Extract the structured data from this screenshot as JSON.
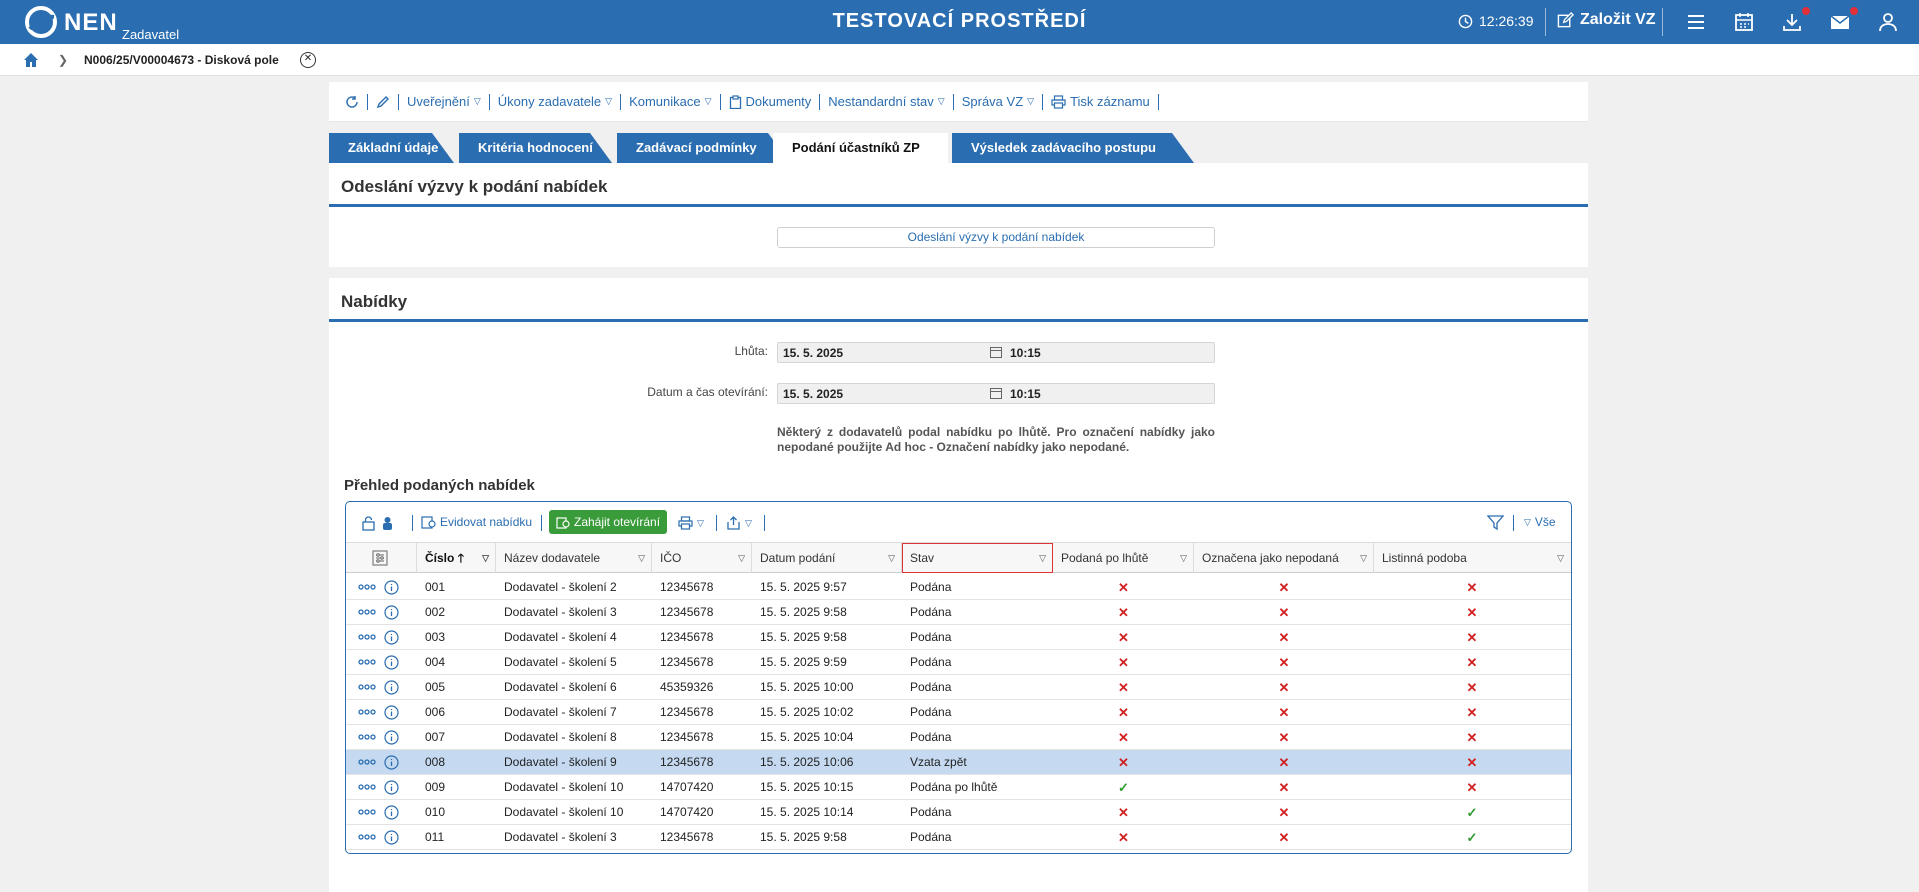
{
  "header": {
    "logo_text": "NEN",
    "logo_sub": "Zadavatel",
    "env_title": "TESTOVACÍ PROSTŘEDÍ",
    "clock": "12:26:39",
    "create_label": "Založit VZ",
    "icons": [
      "clock-icon",
      "edit-icon",
      "menu-icon",
      "calendar-icon",
      "download-icon",
      "mail-icon",
      "user-icon"
    ],
    "accent": "#2a6db0"
  },
  "breadcrumb": {
    "current": "N006/25/V00004673 - Disková pole"
  },
  "actions": {
    "publish": "Uveřejnění",
    "acts": "Úkony zadavatele",
    "comm": "Komunikace",
    "docs": "Dokumenty",
    "nonstd": "Nestandardní stav",
    "manage": "Správa VZ",
    "print": "Tisk záznamu"
  },
  "tabs": [
    {
      "label": "Základní údaje"
    },
    {
      "label": "Kritéria hodnocení"
    },
    {
      "label": "Zadávací podmínky"
    },
    {
      "label": "Podání účastníků ZP"
    },
    {
      "label": "Výsledek zadávacího postupu"
    }
  ],
  "invite": {
    "title": "Odeslání výzvy k podání nabídek",
    "button": "Odeslání výzvy k podání nabídek"
  },
  "offers": {
    "title": "Nabídky",
    "deadline_label": "Lhůta:",
    "deadline_date": "15. 5. 2025",
    "deadline_time": "10:15",
    "open_label": "Datum a čas otevírání:",
    "open_date": "15. 5. 2025",
    "open_time": "10:15",
    "note": "Některý z dodavatelů podal nabídku po lhůtě. Pro označení nabídky jako nepodané použijte Ad hoc - Označení nabídky jako nepodané."
  },
  "grid": {
    "title": "Přehled podaných nabídek",
    "register": "Evidovat nabídku",
    "start_open": "Zahájit otevírání",
    "all": "Vše",
    "columns": [
      "Číslo",
      "Název dodavatele",
      "IČO",
      "Datum podání",
      "Stav",
      "Podaná po lhůtě",
      "Označena jako nepodaná",
      "Listinná podoba"
    ],
    "rows": [
      {
        "num": "001",
        "name": "Dodavatel - školení 2",
        "ico": "12345678",
        "date": "15. 5. 2025 9:57",
        "status": "Podána",
        "late": false,
        "notsub": false,
        "paper": false
      },
      {
        "num": "002",
        "name": "Dodavatel - školení 3",
        "ico": "12345678",
        "date": "15. 5. 2025 9:58",
        "status": "Podána",
        "late": false,
        "notsub": false,
        "paper": false
      },
      {
        "num": "003",
        "name": "Dodavatel - školení 4",
        "ico": "12345678",
        "date": "15. 5. 2025 9:58",
        "status": "Podána",
        "late": false,
        "notsub": false,
        "paper": false
      },
      {
        "num": "004",
        "name": "Dodavatel - školení 5",
        "ico": "12345678",
        "date": "15. 5. 2025 9:59",
        "status": "Podána",
        "late": false,
        "notsub": false,
        "paper": false
      },
      {
        "num": "005",
        "name": "Dodavatel - školení 6",
        "ico": "45359326",
        "date": "15. 5. 2025 10:00",
        "status": "Podána",
        "late": false,
        "notsub": false,
        "paper": false
      },
      {
        "num": "006",
        "name": "Dodavatel - školení 7",
        "ico": "12345678",
        "date": "15. 5. 2025 10:02",
        "status": "Podána",
        "late": false,
        "notsub": false,
        "paper": false
      },
      {
        "num": "007",
        "name": "Dodavatel - školení 8",
        "ico": "12345678",
        "date": "15. 5. 2025 10:04",
        "status": "Podána",
        "late": false,
        "notsub": false,
        "paper": false
      },
      {
        "num": "008",
        "name": "Dodavatel - školení 9",
        "ico": "12345678",
        "date": "15. 5. 2025 10:06",
        "status": "Vzata zpět",
        "late": false,
        "notsub": false,
        "paper": false,
        "selected": true
      },
      {
        "num": "009",
        "name": "Dodavatel - školení 10",
        "ico": "14707420",
        "date": "15. 5. 2025 10:15",
        "status": "Podána po lhůtě",
        "late": true,
        "notsub": false,
        "paper": false
      },
      {
        "num": "010",
        "name": "Dodavatel - školení 10",
        "ico": "14707420",
        "date": "15. 5. 2025 10:14",
        "status": "Podána",
        "late": false,
        "notsub": false,
        "paper": true
      },
      {
        "num": "011",
        "name": "Dodavatel - školení 3",
        "ico": "12345678",
        "date": "15. 5. 2025 9:58",
        "status": "Podána",
        "late": false,
        "notsub": false,
        "paper": true
      }
    ]
  }
}
